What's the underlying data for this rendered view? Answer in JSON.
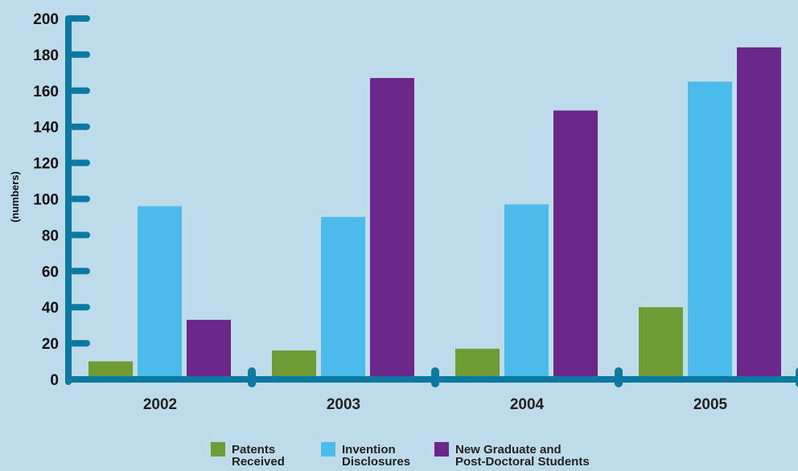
{
  "chart_data": {
    "type": "bar",
    "categories": [
      "2002",
      "2003",
      "2004",
      "2005"
    ],
    "series": [
      {
        "name": "Patents Received",
        "legend_lines": [
          "Patents",
          "Received"
        ],
        "color": "#6f9b35",
        "values": [
          10,
          16,
          17,
          40
        ]
      },
      {
        "name": "Invention Disclosures",
        "legend_lines": [
          "Invention",
          "Disclosures"
        ],
        "color": "#4bbbea",
        "values": [
          96,
          90,
          97,
          165
        ]
      },
      {
        "name": "New Graduate and Post-Doctoral Students",
        "legend_lines": [
          "New Graduate and",
          "Post-Doctoral Students"
        ],
        "color": "#6b2787",
        "values": [
          33,
          167,
          149,
          184
        ]
      }
    ],
    "title": "",
    "xlabel": "",
    "ylabel": "(numbers)",
    "ylim": [
      0,
      200
    ],
    "yticks": [
      "0",
      "20",
      "40",
      "60",
      "80",
      "100",
      "120",
      "140",
      "160",
      "180",
      "200"
    ],
    "grid": false,
    "legend_position": "bottom-center",
    "axis_color": "#0a7aa3",
    "background_color": "#bddbe8"
  }
}
